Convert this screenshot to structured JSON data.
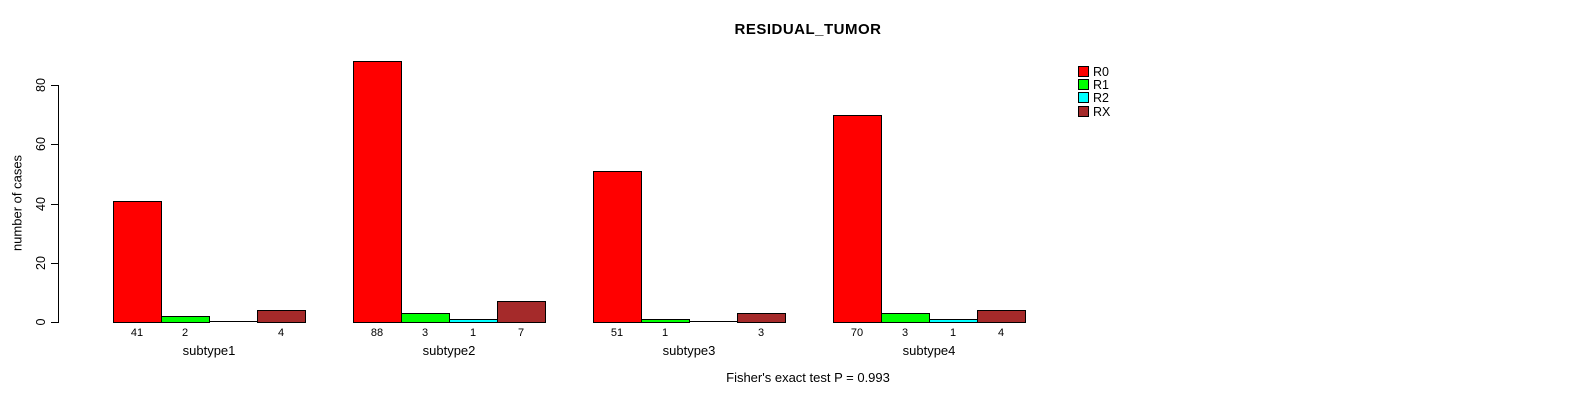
{
  "chart_data": {
    "type": "bar",
    "title": "RESIDUAL_TUMOR",
    "xlabel": "",
    "ylabel": "number of cases",
    "ylim": [
      0,
      88
    ],
    "yticks": [
      "0",
      "20",
      "40",
      "60",
      "80"
    ],
    "grid": false,
    "legend_position": "top-right",
    "categories": [
      "subtype1",
      "subtype2",
      "subtype3",
      "subtype4"
    ],
    "series": [
      {
        "name": "R0",
        "color": "#FF0000",
        "values": [
          41,
          88,
          51,
          70
        ]
      },
      {
        "name": "R1",
        "color": "#00FF00",
        "values": [
          2,
          3,
          1,
          3
        ]
      },
      {
        "name": "R2",
        "color": "#00FFFF",
        "values": [
          0,
          1,
          0,
          1
        ]
      },
      {
        "name": "RX",
        "color": "#A52A2A",
        "values": [
          4,
          7,
          3,
          4
        ]
      }
    ],
    "bar_labels": [
      [
        "41",
        "2",
        "",
        "4"
      ],
      [
        "88",
        "3",
        "1",
        "7"
      ],
      [
        "51",
        "1",
        "",
        "3"
      ],
      [
        "70",
        "3",
        "1",
        "4"
      ]
    ],
    "annotation": "Fisher's exact test P = 0.993"
  }
}
